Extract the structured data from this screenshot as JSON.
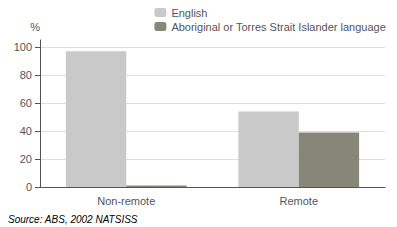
{
  "chart_data": {
    "type": "bar",
    "categories": [
      "Non-remote",
      "Remote"
    ],
    "series": [
      {
        "name": "English",
        "color": "#c9c9c9",
        "values": [
          97,
          54
        ]
      },
      {
        "name": "Aboriginal or Torres Strait Islander language",
        "color": "#878778",
        "values": [
          1,
          39
        ]
      }
    ],
    "ylabel": "%",
    "ylim": [
      0,
      105
    ],
    "yticks": [
      0,
      20,
      40,
      60,
      80,
      100
    ],
    "grid": true,
    "legend": "upper right",
    "annotation": "Source: ABS, 2002 NATSISS"
  }
}
